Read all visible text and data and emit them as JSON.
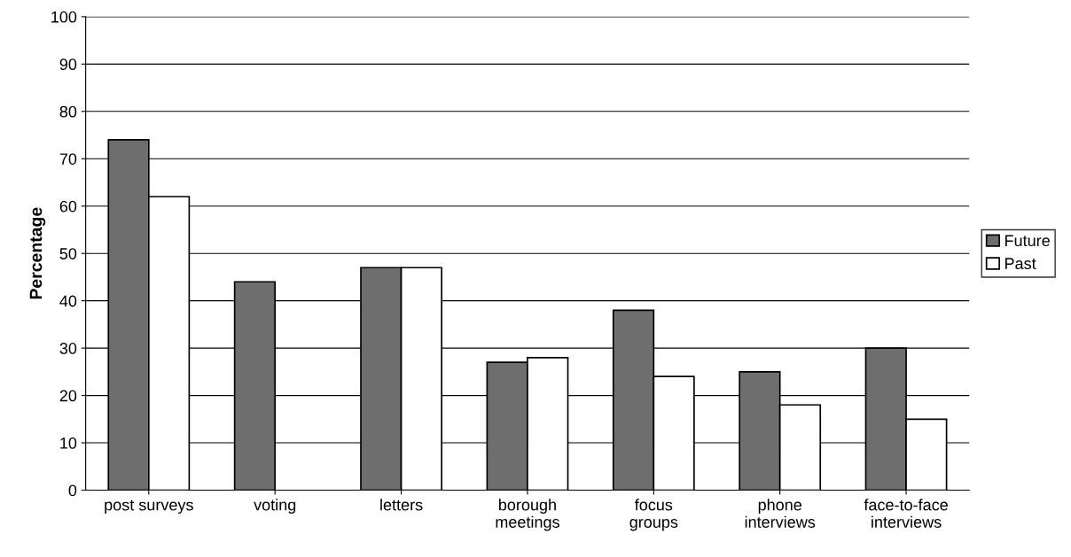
{
  "chart_data": {
    "type": "bar",
    "ylabel": "Percentage",
    "categories": [
      "post surveys",
      "voting",
      "letters",
      "borough\nmeetings",
      "focus\ngroups",
      "phone\ninterviews",
      "face-to-face\ninterviews"
    ],
    "series": [
      {
        "name": "Future",
        "color": "#6e6e6e",
        "values": [
          74,
          44,
          47,
          27,
          38,
          25,
          30
        ]
      },
      {
        "name": "Past",
        "color": "#ffffff",
        "values": [
          62,
          null,
          47,
          28,
          24,
          18,
          15
        ]
      }
    ],
    "ylim": [
      0,
      100
    ],
    "yticks": [
      0,
      10,
      20,
      30,
      40,
      50,
      60,
      70,
      80,
      90,
      100
    ],
    "grid": "y",
    "legend": "right"
  }
}
